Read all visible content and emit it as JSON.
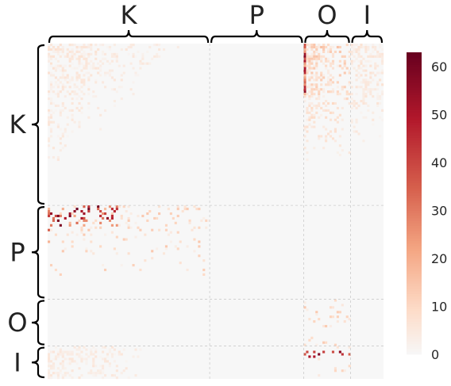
{
  "chart_data": {
    "type": "heatmap",
    "title": "",
    "blocks": [
      "K",
      "P",
      "O",
      "I"
    ],
    "block_sizes": [
      69,
      40,
      20,
      14
    ],
    "colormap": "RdBu_r (sequential red half)",
    "colors": {
      "zero": "#f7f7f7",
      "low": "#fddbc7",
      "mid": "#f4a582",
      "high": "#d6604d",
      "higher": "#b2182b",
      "max": "#67001f",
      "grid": "#cccccc",
      "brace": "#000000"
    },
    "colorbar": {
      "min": 0,
      "max": 63,
      "ticks": [
        "0",
        "10",
        "20",
        "30",
        "40",
        "50",
        "60"
      ]
    },
    "block_intensity": {
      "K_K": "light scattered values (mostly 0-8), denser in upper-left",
      "K_P": "near zero",
      "K_O": "moderate, up to about 60 along the first column",
      "K_I": "light to moderate",
      "P_K": "moderate, several cells 25-60 along the top rows",
      "P_P": "near zero",
      "O_O": "sparse small values",
      "I_K": "light values in the left half",
      "I_O": "a few cells around 40-60"
    },
    "xlabel": "",
    "ylabel": "",
    "grid": true,
    "legend": "colorbar right"
  }
}
